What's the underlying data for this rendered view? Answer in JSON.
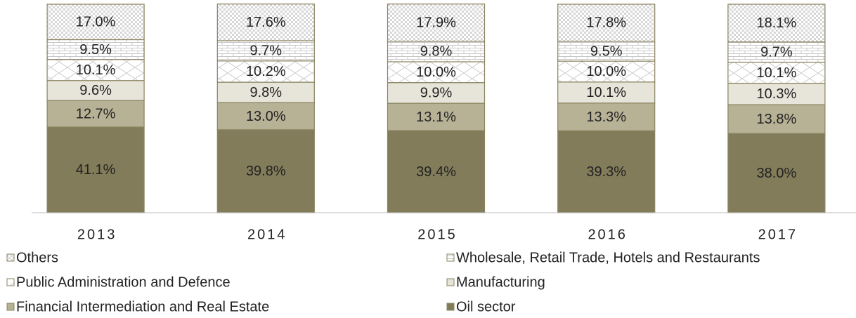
{
  "chart_data": {
    "type": "stacked_bar",
    "categories": [
      "2013",
      "2014",
      "2015",
      "2016",
      "2017"
    ],
    "ylim": [
      0,
      100
    ],
    "series": [
      {
        "name": "Oil sector",
        "color": "#827c5a",
        "pattern": null,
        "values": [
          41.1,
          39.8,
          39.4,
          39.3,
          38.0
        ],
        "value_labels": [
          "41.1%",
          "39.8%",
          "39.4%",
          "39.3%",
          "38.0%"
        ]
      },
      {
        "name": "Financial Intermediation and Real Estate",
        "color": "#b7b196",
        "pattern": null,
        "values": [
          12.7,
          13.0,
          13.1,
          13.3,
          13.8
        ],
        "value_labels": [
          "12.7%",
          "13.0%",
          "13.1%",
          "13.3%",
          "13.8%"
        ]
      },
      {
        "name": "Manufacturing",
        "color": "#e7e4d9",
        "pattern": null,
        "values": [
          9.6,
          9.8,
          9.9,
          10.1,
          10.3
        ],
        "value_labels": [
          "9.6%",
          "9.8%",
          "9.9%",
          "10.1%",
          "10.3%"
        ]
      },
      {
        "name": "Public Administration and Defence",
        "color": "#ffffff",
        "pattern": "cross",
        "values": [
          10.1,
          10.2,
          10.0,
          10.0,
          10.1
        ],
        "value_labels": [
          "10.1%",
          "10.2%",
          "10.0%",
          "10.0%",
          "10.1%"
        ]
      },
      {
        "name": "Wholesale, Retail Trade, Hotels and Restaurants",
        "color": "#ffffff",
        "pattern": "brick",
        "values": [
          9.5,
          9.7,
          9.8,
          9.5,
          9.7
        ],
        "value_labels": [
          "9.5%",
          "9.7%",
          "9.8%",
          "9.5%",
          "9.7%"
        ]
      },
      {
        "name": "Others",
        "color": "#ffffff",
        "pattern": "checker",
        "values": [
          17.0,
          17.6,
          17.9,
          17.8,
          18.1
        ],
        "value_labels": [
          "17.0%",
          "17.6%",
          "17.9%",
          "17.8%",
          "18.1%"
        ]
      }
    ]
  }
}
